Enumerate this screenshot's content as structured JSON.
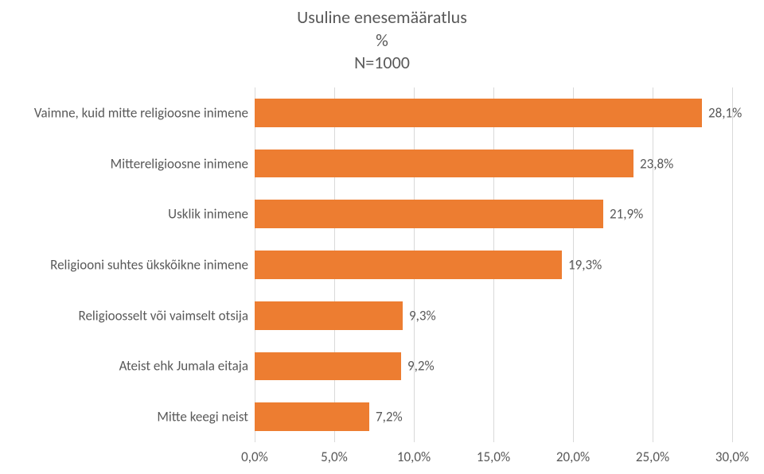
{
  "chart": {
    "type": "bar-horizontal",
    "title_lines": [
      "Usuline enesemääratlus",
      "%",
      "N=1000"
    ],
    "title_color": "#595959",
    "title_fontsize": 22,
    "label_fontsize": 17,
    "text_color": "#595959",
    "background_color": "#ffffff",
    "grid_color": "#d9d9d9",
    "bar_color": "#ed7d31",
    "bar_width_ratio": 0.56,
    "x_axis": {
      "min": 0,
      "max": 30,
      "tick_step": 5,
      "ticks": [
        0,
        5,
        10,
        15,
        20,
        25,
        30
      ],
      "tick_labels": [
        "0,0%",
        "5,0%",
        "10,0%",
        "15,0%",
        "20,0%",
        "25,0%",
        "30,0%"
      ]
    },
    "categories": [
      {
        "label": "Vaimne, kuid mitte religioosne inimene",
        "value": 28.1,
        "value_label": "28,1%"
      },
      {
        "label": "Mittereligioosne inimene",
        "value": 23.8,
        "value_label": "23,8%"
      },
      {
        "label": "Usklik inimene",
        "value": 21.9,
        "value_label": "21,9%"
      },
      {
        "label": "Religiooni suhtes ükskõikne inimene",
        "value": 19.3,
        "value_label": "19,3%"
      },
      {
        "label": "Religioosselt või vaimselt otsija",
        "value": 9.3,
        "value_label": "9,3%"
      },
      {
        "label": "Ateist ehk Jumala eitaja",
        "value": 9.2,
        "value_label": "9,2%"
      },
      {
        "label": "Mitte keegi neist",
        "value": 7.2,
        "value_label": "7,2%"
      }
    ]
  }
}
